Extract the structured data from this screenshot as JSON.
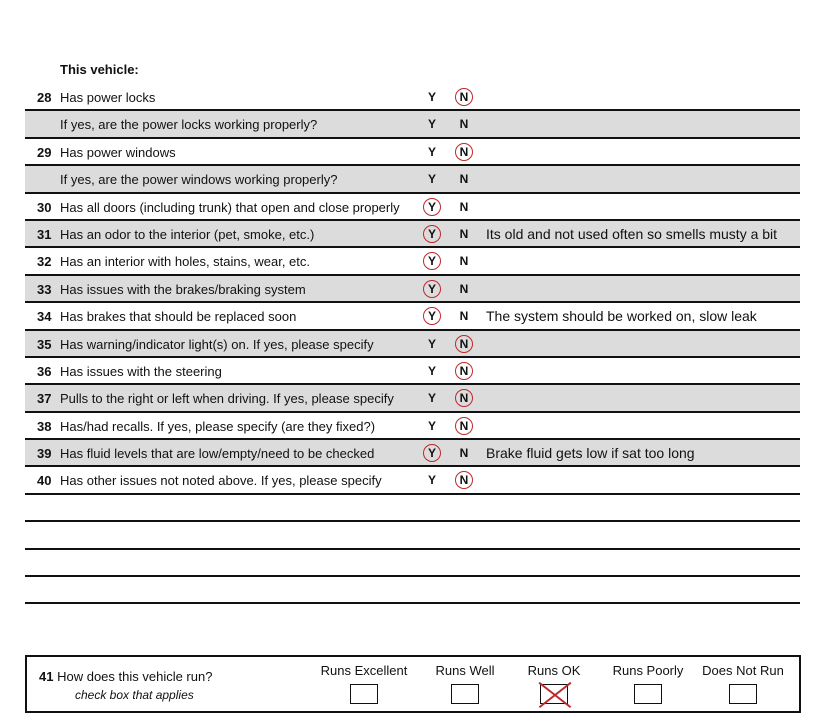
{
  "heading": "This vehicle:",
  "rows": [
    {
      "num": "28",
      "text": "Has power locks",
      "y": "Y",
      "n": "N",
      "answer": "N",
      "comment": ""
    },
    {
      "num": "",
      "text": "If yes, are the power locks working properly?",
      "y": "Y",
      "n": "N",
      "answer": "",
      "comment": ""
    },
    {
      "num": "29",
      "text": "Has power windows",
      "y": "Y",
      "n": "N",
      "answer": "N",
      "comment": ""
    },
    {
      "num": "",
      "text": "If yes, are the power windows working properly?",
      "y": "Y",
      "n": "N",
      "answer": "",
      "comment": ""
    },
    {
      "num": "30",
      "text": "Has all doors (including trunk) that open and close properly",
      "y": "Y",
      "n": "N",
      "answer": "Y",
      "comment": ""
    },
    {
      "num": "31",
      "text": "Has an odor to the interior (pet, smoke, etc.)",
      "y": "Y",
      "n": "N",
      "answer": "Y",
      "comment": "Its old and not used often so smells musty a bit"
    },
    {
      "num": "32",
      "text": "Has an interior with holes, stains, wear, etc.",
      "y": "Y",
      "n": "N",
      "answer": "Y",
      "comment": ""
    },
    {
      "num": "33",
      "text": "Has issues with the brakes/braking system",
      "y": "Y",
      "n": "N",
      "answer": "Y",
      "comment": ""
    },
    {
      "num": "34",
      "text": "Has brakes that should be replaced soon",
      "y": "Y",
      "n": "N",
      "answer": "Y",
      "comment": "The system should be worked on, slow leak"
    },
    {
      "num": "35",
      "text": "Has warning/indicator light(s) on.  If yes, please specify",
      "y": "Y",
      "n": "N",
      "answer": "N",
      "comment": ""
    },
    {
      "num": "36",
      "text": "Has issues with the steering",
      "y": "Y",
      "n": "N",
      "answer": "N",
      "comment": ""
    },
    {
      "num": "37",
      "text": "Pulls to the right or left when driving.  If yes, please specify",
      "y": "Y",
      "n": "N",
      "answer": "N",
      "comment": ""
    },
    {
      "num": "38",
      "text": "Has/had recalls.  If yes, please specify (are they fixed?)",
      "y": "Y",
      "n": "N",
      "answer": "N",
      "comment": ""
    },
    {
      "num": "39",
      "text": "Has fluid levels that are low/empty/need to be checked",
      "y": "Y",
      "n": "N",
      "answer": "Y",
      "comment": "Brake fluid gets low if sat too long"
    },
    {
      "num": "40",
      "text": "Has other issues not noted above.  If yes, please specify",
      "y": "Y",
      "n": "N",
      "answer": "N",
      "comment": ""
    }
  ],
  "q41": {
    "num": "41",
    "text": "How does this vehicle run?",
    "hint": "check box that applies",
    "options": [
      {
        "label": "Runs Excellent",
        "checked": false
      },
      {
        "label": "Runs Well",
        "checked": false
      },
      {
        "label": "Runs OK",
        "checked": true
      },
      {
        "label": "Runs Poorly",
        "checked": false
      },
      {
        "label": "Does Not Run",
        "checked": false
      }
    ]
  },
  "colors": {
    "mark": "#c0282c",
    "shade": "#dcdcdc"
  }
}
